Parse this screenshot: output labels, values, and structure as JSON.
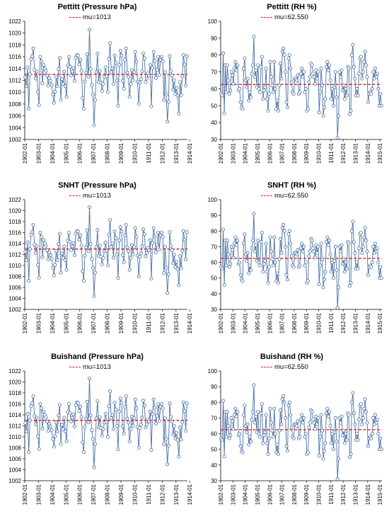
{
  "x_labels": [
    "1902-01",
    "1903-01",
    "1904-01",
    "1905-01",
    "1906-01",
    "1907-01",
    "1908-01",
    "1909-01",
    "1910-01",
    "1911-01",
    "1912-01",
    "1913-01",
    "1914-01",
    "1915-01"
  ],
  "legend_pressure": "mu=1013",
  "legend_rh": "mu=62.550",
  "colors": {
    "series": "#4a6fa5",
    "marker_fill": "#ffffff",
    "mean_line": "#e02020",
    "axis": "#000000"
  },
  "panels": [
    {
      "title": "Pettitt (Pressure hPa)"
    },
    {
      "title": "Pettitt (RH %)"
    },
    {
      "title": "SNHT (Pressure hPa)"
    },
    {
      "title": "SNHT (RH %)"
    },
    {
      "title": "Buishand (Pressure hPa)"
    },
    {
      "title": "Buishand (RH %)"
    }
  ],
  "chart_data": [
    {
      "type": "line",
      "title": "Pettitt (Pressure hPa)",
      "ylim": [
        1002,
        1022
      ],
      "yticks": [
        1002,
        1004,
        1006,
        1008,
        1010,
        1012,
        1014,
        1016,
        1018,
        1020,
        1022
      ],
      "x_start": "1902-01",
      "x_step": "1 month",
      "series": [
        {
          "values": [
            1012.5,
            1011.0,
            1014.2,
            1007.2,
            1013.0,
            1015.6,
            1016.1,
            1017.4,
            1013.8,
            1012.3,
            1013.5,
            1010.1,
            1007.8,
            1016.0,
            1015.2,
            1011.5,
            1014.6,
            1014.0,
            1013.6,
            1012.8,
            1011.1,
            1012.4,
            1011.9,
            1011.2,
            1009.6,
            1008.2,
            1010.1,
            1012.6,
            1011.0,
            1013.9,
            1015.8,
            1008.7,
            1012.2,
            1011.4,
            1013.5,
            1011.0,
            1009.2,
            1014.5,
            1016.0,
            1014.3,
            1012.8,
            1013.5,
            1014.1,
            1011.9,
            1015.8,
            1016.3,
            1016.2,
            1014.7,
            1015.5,
            1013.6,
            1009.0,
            1007.2,
            1011.8,
            1013.3,
            1016.4,
            1012.6,
            1020.6,
            1013.9,
            1011.2,
            1009.6,
            1004.4,
            1008.7,
            1013.4,
            1016.5,
            1011.7,
            1013.6,
            1011.6,
            1010.2,
            1011.4,
            1012.6,
            1014.2,
            1012.7,
            1010.0,
            1015.6,
            1018.3,
            1013.4,
            1014.0,
            1011.4,
            1016.2,
            1015.0,
            1012.0,
            1007.7,
            1014.6,
            1017.0,
            1016.2,
            1011.9,
            1010.6,
            1015.5,
            1017.4,
            1013.3,
            1012.6,
            1009.2,
            1011.4,
            1013.7,
            1012.0,
            1013.4,
            1016.8,
            1015.2,
            1011.8,
            1008.0,
            1011.6,
            1012.2,
            1013.5,
            1016.6,
            1015.7,
            1011.7,
            1012.3,
            1013.2,
            1012.8,
            1014.6,
            1007.6,
            1014.1,
            1016.8,
            1015.3,
            1012.4,
            1013.8,
            1016.0,
            1012.9,
            1015.5,
            1016.0,
            1015.2,
            1008.6,
            1013.4,
            1009.6,
            1005.0,
            1008.4,
            1016.1,
            1013.6,
            1012.8,
            1010.4,
            1012.0,
            1009.7,
            1010.7,
            1009.4,
            1006.4,
            1011.7,
            1009.5,
            1012.7,
            1016.3,
            1014.7,
            1011.1,
            1016.1
          ]
        },
        {
          "name": "mu=1013",
          "constant": 1013
        }
      ]
    },
    {
      "type": "line",
      "title": "Pettitt (RH %)",
      "ylim": [
        30,
        100
      ],
      "yticks": [
        30,
        40,
        50,
        60,
        70,
        80,
        90,
        100
      ],
      "x_start": "1902-01",
      "x_step": "1 month",
      "series": [
        {
          "values": [
            57,
            56,
            81,
            45.5,
            74,
            58,
            74,
            65,
            57,
            59,
            70,
            68,
            63,
            72,
            76,
            71,
            74,
            59,
            60,
            52,
            49,
            48,
            72,
            78,
            65,
            61,
            66,
            53,
            58,
            55,
            69,
            74,
            91,
            67,
            71,
            61,
            74,
            60,
            58,
            73,
            79,
            54,
            59,
            61,
            72,
            54,
            47,
            57,
            76,
            67,
            62,
            58,
            76,
            60,
            48,
            53,
            47,
            62,
            75,
            66,
            82,
            84,
            80,
            70,
            52,
            49,
            78,
            80,
            72,
            64,
            58,
            57,
            66,
            66,
            65,
            68,
            57,
            58,
            69,
            72,
            67,
            70,
            58,
            60,
            47,
            48,
            64,
            67,
            75,
            74,
            69,
            67,
            63,
            71,
            66,
            70,
            46,
            58,
            72,
            62,
            44,
            49,
            54,
            73,
            76,
            71,
            74,
            65,
            54,
            60,
            50,
            61,
            70,
            55,
            31,
            44,
            70,
            67,
            71,
            59,
            62,
            54,
            60,
            56,
            73,
            72,
            45,
            47,
            80,
            86,
            73,
            66,
            56,
            60,
            56,
            69,
            78,
            79,
            66,
            70,
            76,
            82,
            74,
            67,
            52,
            57,
            58,
            57,
            60,
            70,
            66,
            72,
            67,
            69,
            60,
            50,
            57,
            50
          ]
        },
        {
          "name": "mu=62.550",
          "constant": 62.55
        }
      ]
    },
    {
      "type": "line",
      "title": "SNHT (Pressure hPa)",
      "ylim": [
        1002,
        1022
      ],
      "yticks": [
        1002,
        1004,
        1006,
        1008,
        1010,
        1012,
        1014,
        1016,
        1018,
        1020,
        1022
      ],
      "x_start": "1902-01",
      "x_step": "1 month",
      "series": [
        {
          "values": [
            1012.5,
            1011.0,
            1014.2,
            1007.2,
            1013.0,
            1015.6,
            1016.1,
            1017.4,
            1013.8,
            1012.3,
            1013.5,
            1010.1,
            1007.8,
            1016.0,
            1015.2,
            1011.5,
            1014.6,
            1014.0,
            1013.6,
            1012.8,
            1011.1,
            1012.4,
            1011.9,
            1011.2,
            1009.6,
            1008.2,
            1010.1,
            1012.6,
            1011.0,
            1013.9,
            1015.8,
            1008.7,
            1012.2,
            1011.4,
            1013.5,
            1011.0,
            1009.2,
            1014.5,
            1016.0,
            1014.3,
            1012.8,
            1013.5,
            1014.1,
            1011.9,
            1015.8,
            1016.3,
            1016.2,
            1014.7,
            1015.5,
            1013.6,
            1009.0,
            1007.2,
            1011.8,
            1013.3,
            1016.4,
            1012.6,
            1020.6,
            1013.9,
            1011.2,
            1009.6,
            1004.4,
            1008.7,
            1013.4,
            1016.5,
            1011.7,
            1013.6,
            1011.6,
            1010.2,
            1011.4,
            1012.6,
            1014.2,
            1012.7,
            1010.0,
            1015.6,
            1018.3,
            1013.4,
            1014.0,
            1011.4,
            1016.2,
            1015.0,
            1012.0,
            1007.7,
            1014.6,
            1017.0,
            1016.2,
            1011.9,
            1010.6,
            1015.5,
            1017.4,
            1013.3,
            1012.6,
            1009.2,
            1011.4,
            1013.7,
            1012.0,
            1013.4,
            1016.8,
            1015.2,
            1011.8,
            1008.0,
            1011.6,
            1012.2,
            1013.5,
            1016.6,
            1015.7,
            1011.7,
            1012.3,
            1013.2,
            1012.8,
            1014.6,
            1007.6,
            1014.1,
            1016.8,
            1015.3,
            1012.4,
            1013.8,
            1016.0,
            1012.9,
            1015.5,
            1016.0,
            1015.2,
            1008.6,
            1013.4,
            1009.6,
            1005.0,
            1008.4,
            1016.1,
            1013.6,
            1012.8,
            1010.4,
            1012.0,
            1009.7,
            1010.7,
            1009.4,
            1006.4,
            1011.7,
            1009.5,
            1012.7,
            1016.3,
            1014.7,
            1011.1,
            1016.1
          ]
        },
        {
          "name": "mu=1013",
          "constant": 1013
        }
      ]
    },
    {
      "type": "line",
      "title": "SNHT (RH %)",
      "ylim": [
        30,
        100
      ],
      "yticks": [
        30,
        40,
        50,
        60,
        70,
        80,
        90,
        100
      ],
      "x_start": "1902-01",
      "x_step": "1 month",
      "series": [
        {
          "values": [
            57,
            56,
            81,
            45.5,
            74,
            58,
            74,
            65,
            57,
            59,
            70,
            68,
            63,
            72,
            76,
            71,
            74,
            59,
            60,
            52,
            49,
            48,
            72,
            78,
            65,
            61,
            66,
            53,
            58,
            55,
            69,
            74,
            91,
            67,
            71,
            61,
            74,
            60,
            58,
            73,
            79,
            54,
            59,
            61,
            72,
            54,
            47,
            57,
            76,
            67,
            62,
            58,
            76,
            60,
            48,
            53,
            47,
            62,
            75,
            66,
            82,
            84,
            80,
            70,
            52,
            49,
            78,
            80,
            72,
            64,
            58,
            57,
            66,
            66,
            65,
            68,
            57,
            58,
            69,
            72,
            67,
            70,
            58,
            60,
            47,
            48,
            64,
            67,
            75,
            74,
            69,
            67,
            63,
            71,
            66,
            70,
            46,
            58,
            72,
            62,
            44,
            49,
            54,
            73,
            76,
            71,
            74,
            65,
            54,
            60,
            50,
            61,
            70,
            55,
            31,
            44,
            70,
            67,
            71,
            59,
            62,
            54,
            60,
            56,
            73,
            72,
            45,
            47,
            80,
            86,
            73,
            66,
            56,
            60,
            56,
            69,
            78,
            79,
            66,
            70,
            76,
            82,
            74,
            67,
            52,
            57,
            58,
            57,
            60,
            70,
            66,
            72,
            67,
            69,
            60,
            50,
            57,
            50
          ]
        },
        {
          "name": "mu=62.550",
          "constant": 62.55
        }
      ]
    },
    {
      "type": "line",
      "title": "Buishand (Pressure hPa)",
      "ylim": [
        1002,
        1022
      ],
      "yticks": [
        1002,
        1004,
        1006,
        1008,
        1010,
        1012,
        1014,
        1016,
        1018,
        1020,
        1022
      ],
      "x_start": "1902-01",
      "x_step": "1 month",
      "series": [
        {
          "values": [
            1012.5,
            1011.0,
            1014.2,
            1007.2,
            1013.0,
            1015.6,
            1016.1,
            1017.4,
            1013.8,
            1012.3,
            1013.5,
            1010.1,
            1007.8,
            1016.0,
            1015.2,
            1011.5,
            1014.6,
            1014.0,
            1013.6,
            1012.8,
            1011.1,
            1012.4,
            1011.9,
            1011.2,
            1009.6,
            1008.2,
            1010.1,
            1012.6,
            1011.0,
            1013.9,
            1015.8,
            1008.7,
            1012.2,
            1011.4,
            1013.5,
            1011.0,
            1009.2,
            1014.5,
            1016.0,
            1014.3,
            1012.8,
            1013.5,
            1014.1,
            1011.9,
            1015.8,
            1016.3,
            1016.2,
            1014.7,
            1015.5,
            1013.6,
            1009.0,
            1007.2,
            1011.8,
            1013.3,
            1016.4,
            1012.6,
            1020.6,
            1013.9,
            1011.2,
            1009.6,
            1004.4,
            1008.7,
            1013.4,
            1016.5,
            1011.7,
            1013.6,
            1011.6,
            1010.2,
            1011.4,
            1012.6,
            1014.2,
            1012.7,
            1010.0,
            1015.6,
            1018.3,
            1013.4,
            1014.0,
            1011.4,
            1016.2,
            1015.0,
            1012.0,
            1007.7,
            1014.6,
            1017.0,
            1016.2,
            1011.9,
            1010.6,
            1015.5,
            1017.4,
            1013.3,
            1012.6,
            1009.2,
            1011.4,
            1013.7,
            1012.0,
            1013.4,
            1016.8,
            1015.2,
            1011.8,
            1008.0,
            1011.6,
            1012.2,
            1013.5,
            1016.6,
            1015.7,
            1011.7,
            1012.3,
            1013.2,
            1012.8,
            1014.6,
            1007.6,
            1014.1,
            1016.8,
            1015.3,
            1012.4,
            1013.8,
            1016.0,
            1012.9,
            1015.5,
            1016.0,
            1015.2,
            1008.6,
            1013.4,
            1009.6,
            1005.0,
            1008.4,
            1016.1,
            1013.6,
            1012.8,
            1010.4,
            1012.0,
            1009.7,
            1010.7,
            1009.4,
            1006.4,
            1011.7,
            1009.5,
            1012.7,
            1016.3,
            1014.7,
            1011.1,
            1016.1
          ]
        },
        {
          "name": "mu=1013",
          "constant": 1013
        }
      ]
    },
    {
      "type": "line",
      "title": "Buishand (RH %)",
      "ylim": [
        30,
        100
      ],
      "yticks": [
        30,
        40,
        50,
        60,
        70,
        80,
        90,
        100
      ],
      "x_start": "1902-01",
      "x_step": "1 month",
      "series": [
        {
          "values": [
            57,
            56,
            81,
            45.5,
            74,
            58,
            74,
            65,
            57,
            59,
            70,
            68,
            63,
            72,
            76,
            71,
            74,
            59,
            60,
            52,
            49,
            48,
            72,
            78,
            65,
            61,
            66,
            53,
            58,
            55,
            69,
            74,
            91,
            67,
            71,
            61,
            74,
            60,
            58,
            73,
            79,
            54,
            59,
            61,
            72,
            54,
            47,
            57,
            76,
            67,
            62,
            58,
            76,
            60,
            48,
            53,
            47,
            62,
            75,
            66,
            82,
            84,
            80,
            70,
            52,
            49,
            78,
            80,
            72,
            64,
            58,
            57,
            66,
            66,
            65,
            68,
            57,
            58,
            69,
            72,
            67,
            70,
            58,
            60,
            47,
            48,
            64,
            67,
            75,
            74,
            69,
            67,
            63,
            71,
            66,
            70,
            46,
            58,
            72,
            62,
            44,
            49,
            54,
            73,
            76,
            71,
            74,
            65,
            54,
            60,
            50,
            61,
            70,
            55,
            31,
            44,
            70,
            67,
            71,
            59,
            62,
            54,
            60,
            56,
            73,
            72,
            45,
            47,
            80,
            86,
            73,
            66,
            56,
            60,
            56,
            69,
            78,
            79,
            66,
            70,
            76,
            82,
            74,
            67,
            52,
            57,
            58,
            57,
            60,
            70,
            66,
            72,
            67,
            69,
            60,
            50,
            57,
            50
          ]
        },
        {
          "name": "mu=62.550",
          "constant": 62.55
        }
      ]
    }
  ]
}
